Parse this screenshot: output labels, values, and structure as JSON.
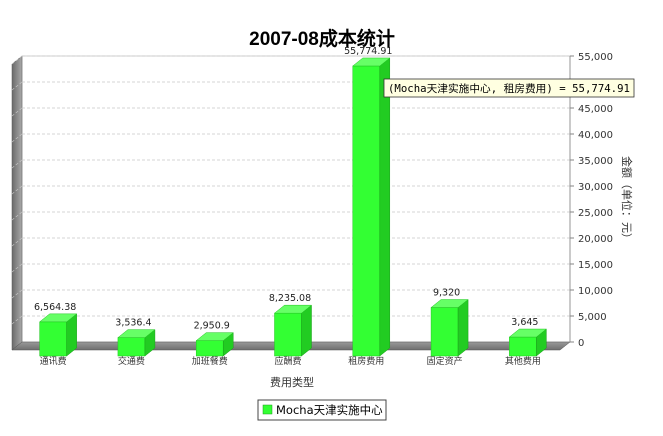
{
  "chart_data": {
    "type": "bar",
    "title": "2007-08成本统计",
    "xlabel": "费用类型",
    "ylabel": "金额（单位：元）",
    "ylim": [
      0,
      55000
    ],
    "y_ticks": [
      0,
      5000,
      10000,
      15000,
      20000,
      25000,
      30000,
      35000,
      40000,
      45000,
      50000,
      55000
    ],
    "y_tick_labels": [
      "0",
      "5,000",
      "10,000",
      "15,000",
      "20,000",
      "25,000",
      "30,000",
      "35,000",
      "40,000",
      "45,000",
      "50,000",
      "55,000"
    ],
    "categories": [
      "通讯费",
      "交通费",
      "加班餐费",
      "应酬费",
      "租房费用",
      "固定资产",
      "其他费用"
    ],
    "series": [
      {
        "name": "Mocha天津实施中心",
        "color": "#33ff33",
        "values": [
          6564.38,
          3536.4,
          2950.9,
          8235.08,
          55774.91,
          9320,
          3645
        ],
        "labels": [
          "6,564.38",
          "3,536.4",
          "2,950.9",
          "8,235.08",
          "55,774.91",
          "9,320",
          "3,645"
        ]
      }
    ],
    "grid": true,
    "legend_position": "bottom-center",
    "tooltip": "(Mocha天津实施中心, 租房费用) = 55,774.91"
  }
}
